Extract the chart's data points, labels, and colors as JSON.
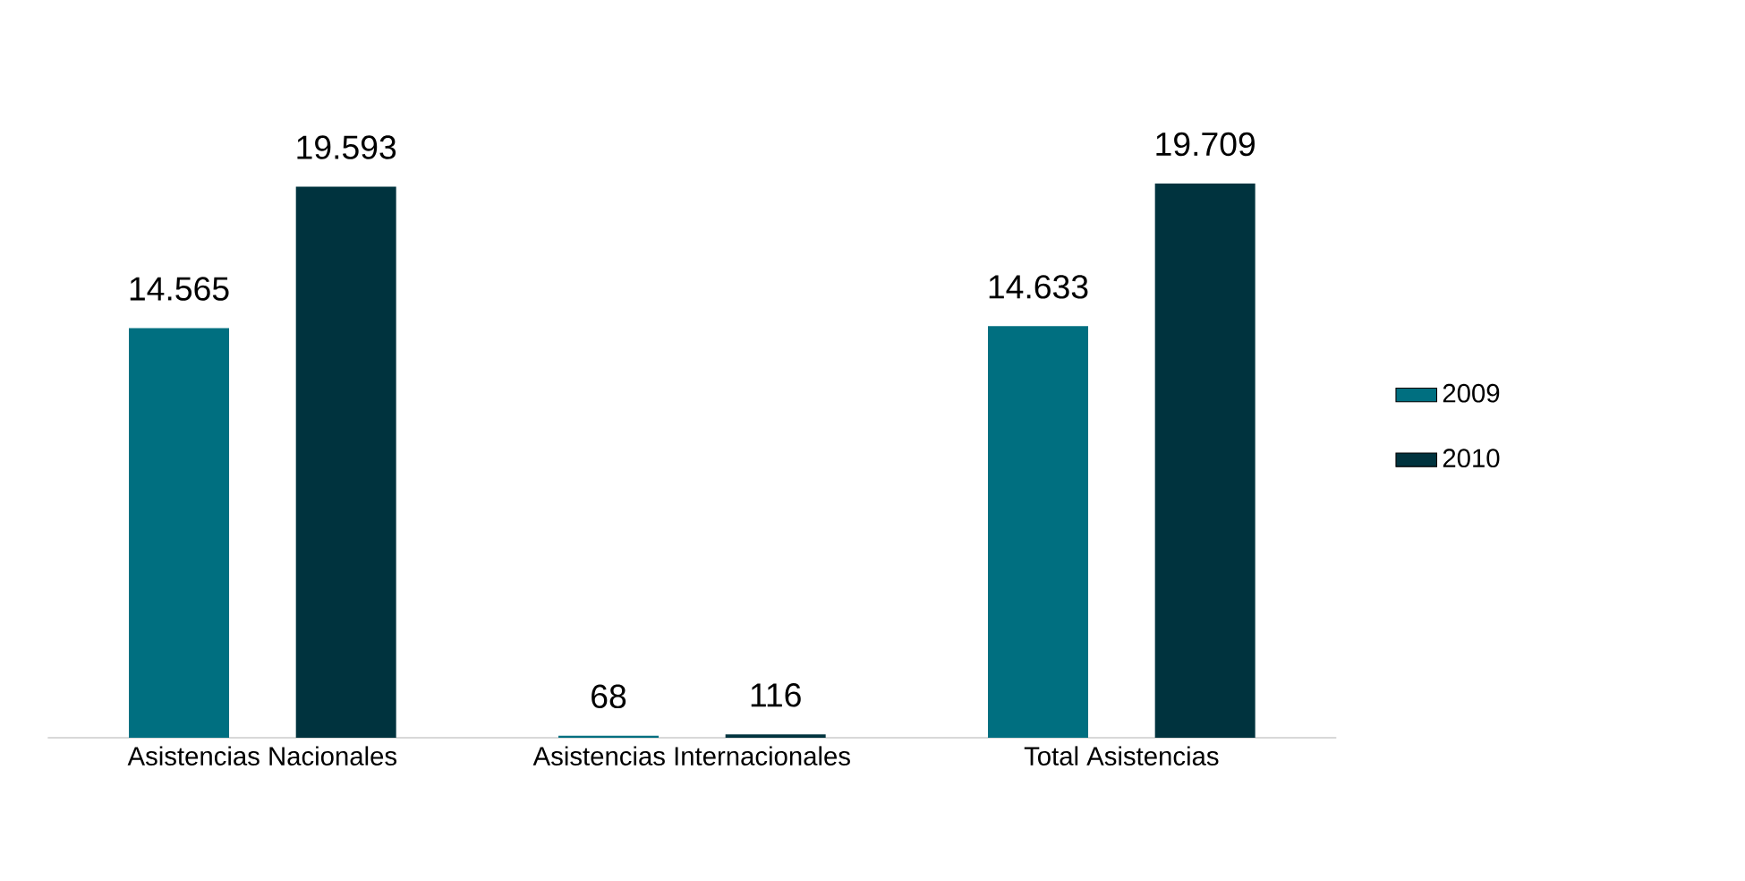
{
  "chart_data": {
    "type": "bar",
    "categories": [
      "Asistencias Nacionales",
      "Asistencias Internacionales",
      "Total Asistencias"
    ],
    "series": [
      {
        "name": "2009",
        "color": "#006f80",
        "values": [
          14565,
          68,
          14633
        ],
        "value_labels": [
          "14.565",
          "68",
          "14.633"
        ]
      },
      {
        "name": "2010",
        "color": "#00333e",
        "values": [
          19593,
          116,
          19709
        ],
        "value_labels": [
          "19.593",
          "116",
          "19.709"
        ]
      }
    ],
    "legend": "right"
  }
}
